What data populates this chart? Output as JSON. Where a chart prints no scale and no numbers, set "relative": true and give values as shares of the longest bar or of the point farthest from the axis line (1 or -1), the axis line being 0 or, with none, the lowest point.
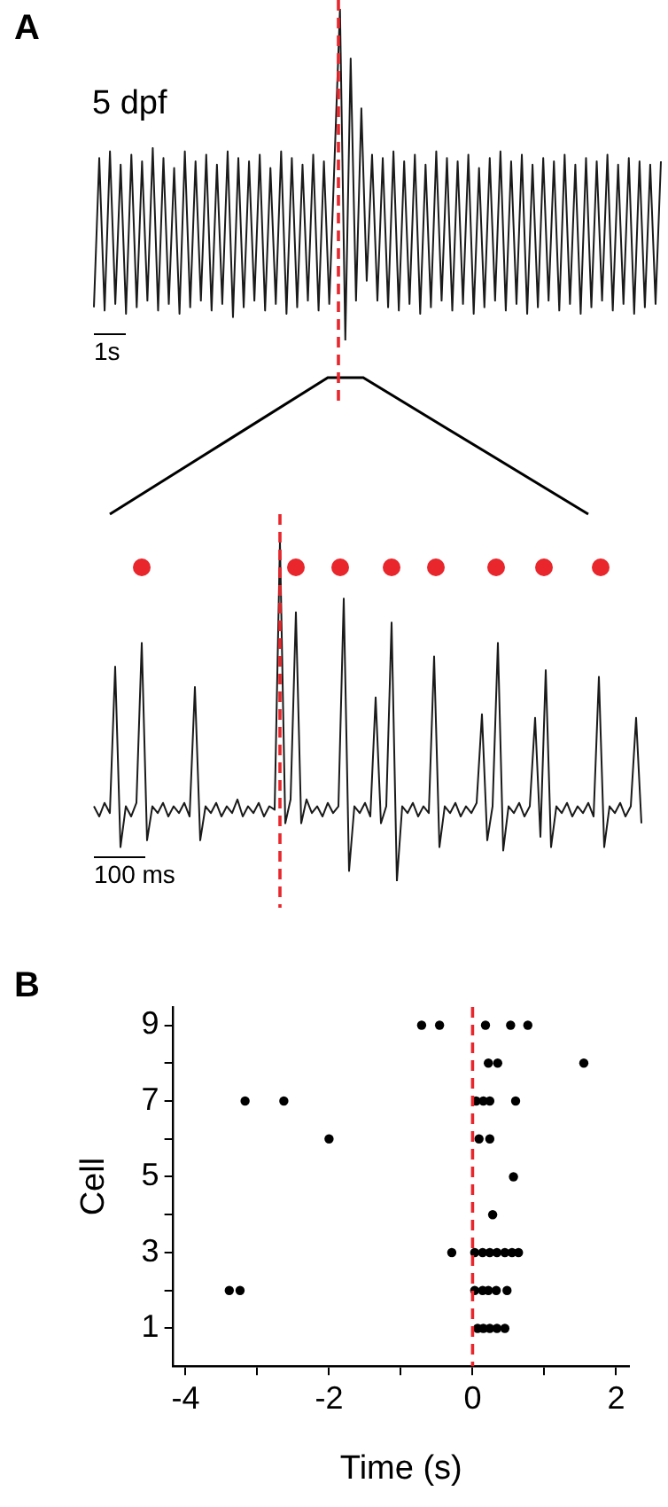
{
  "chart_data": [
    {
      "type": "line",
      "title": "A",
      "annotations": [
        "5 dpf",
        "1s"
      ],
      "relative": true,
      "tick_labels": false,
      "grid": false,
      "categories": [
        null,
        null,
        null,
        null,
        null,
        null,
        null,
        null,
        null,
        null,
        null,
        null,
        null,
        null,
        null,
        null,
        null,
        null,
        null,
        null,
        null,
        null,
        null,
        null,
        null,
        null,
        null,
        null,
        null,
        null,
        null,
        null,
        null,
        null,
        null,
        null,
        null,
        null,
        null,
        null,
        null,
        null,
        null,
        null,
        null,
        null,
        null,
        null,
        null,
        null,
        null,
        null,
        null,
        null,
        null,
        null,
        null,
        null,
        null,
        null,
        null,
        null,
        null,
        null,
        null,
        null,
        null,
        null,
        null,
        null,
        null,
        null,
        null,
        null,
        null,
        null,
        null,
        null,
        null,
        null,
        null,
        null,
        null,
        null,
        null,
        null,
        null,
        null,
        null,
        null,
        null,
        null,
        null,
        null,
        null,
        null,
        null,
        null,
        null,
        null,
        null,
        null,
        null,
        null,
        null,
        null,
        null
      ],
      "series": [
        {
          "color": "#1a1a1a",
          "values": [
            0.1,
            0.55,
            0.09,
            0.57,
            0.11,
            0.53,
            0.08,
            0.56,
            0.1,
            0.54,
            0.12,
            0.58,
            0.09,
            0.55,
            0.11,
            0.52,
            0.08,
            0.57,
            0.1,
            0.54,
            0.12,
            0.56,
            0.09,
            0.53,
            0.11,
            0.57,
            0.07,
            0.55,
            0.1,
            0.54,
            0.12,
            0.56,
            0.09,
            0.52,
            0.11,
            0.57,
            0.08,
            0.55,
            0.1,
            0.53,
            0.12,
            0.56,
            0.09,
            0.54,
            0.11,
            0.55,
            1,
            0,
            0.85,
            0.12,
            0.7,
            0.18,
            0.56,
            0.12,
            0.55,
            0.1,
            0.57,
            0.09,
            0.54,
            0.11,
            0.56,
            0.08,
            0.53,
            0.1,
            0.57,
            0.12,
            0.55,
            0.09,
            0.54,
            0.11,
            0.56,
            0.08,
            0.52,
            0.1,
            0.55,
            0.12,
            0.57,
            0.09,
            0.54,
            0.11,
            0.56,
            0.08,
            0.53,
            0.1,
            0.55,
            0.12,
            0.54,
            0.09,
            0.56,
            0.11,
            0.53,
            0.08,
            0.55,
            0.1,
            0.54,
            0.12,
            0.56,
            0.09,
            0.53,
            0.11,
            0.55,
            0.08,
            0.54,
            0.1,
            0.53,
            0.11,
            0.54
          ]
        }
      ]
    },
    {
      "type": "line",
      "annotations": [
        "100 ms"
      ],
      "relative": true,
      "tick_labels": false,
      "grid": false,
      "categories": [
        null,
        null,
        null,
        null,
        null,
        null,
        null,
        null,
        null,
        null,
        null,
        null,
        null,
        null,
        null,
        null,
        null,
        null,
        null,
        null,
        null,
        null,
        null,
        null,
        null,
        null,
        null,
        null,
        null,
        null,
        null,
        null,
        null,
        null,
        null,
        null,
        null,
        null,
        null,
        null,
        null,
        null,
        null,
        null,
        null,
        null,
        null,
        null,
        null,
        null,
        null,
        null,
        null,
        null,
        null,
        null,
        null,
        null,
        null,
        null,
        null,
        null,
        null,
        null,
        null,
        null,
        null,
        null,
        null,
        null,
        null,
        null,
        null,
        null,
        null,
        null,
        null,
        null,
        null,
        null,
        null,
        null,
        null,
        null,
        null,
        null,
        null,
        null,
        null,
        null,
        null,
        null,
        null,
        null,
        null,
        null,
        null,
        null,
        null,
        null,
        null,
        null,
        null,
        null
      ],
      "series": [
        {
          "type": "line",
          "color": "#1a1a1a",
          "values": [
            0.22,
            0.19,
            0.23,
            0.2,
            0.63,
            0.1,
            0.22,
            0.19,
            0.23,
            0.7,
            0.12,
            0.22,
            0.2,
            0.23,
            0.19,
            0.22,
            0.2,
            0.23,
            0.19,
            0.57,
            0.12,
            0.22,
            0.2,
            0.23,
            0.19,
            0.22,
            0.2,
            0.24,
            0.19,
            0.22,
            0.2,
            0.23,
            0.19,
            0.22,
            0.21,
            1,
            0.17,
            0.24,
            0.79,
            0.17,
            0.24,
            0.2,
            0.22,
            0.19,
            0.23,
            0.2,
            0.22,
            0.83,
            0.03,
            0.22,
            0.2,
            0.23,
            0.19,
            0.54,
            0.17,
            0.22,
            0.76,
            0,
            0.22,
            0.2,
            0.23,
            0.19,
            0.22,
            0.2,
            0.66,
            0.1,
            0.22,
            0.2,
            0.23,
            0.19,
            0.22,
            0.2,
            0.23,
            0.49,
            0.12,
            0.22,
            0.7,
            0.09,
            0.22,
            0.2,
            0.23,
            0.19,
            0.22,
            0.48,
            0.13,
            0.62,
            0.1,
            0.22,
            0.2,
            0.23,
            0.19,
            0.22,
            0.2,
            0.23,
            0.19,
            0.6,
            0.1,
            0.22,
            0.2,
            0.23,
            0.19,
            0.22,
            0.48,
            0.17
          ]
        }
      ]
    },
    {
      "type": "scatter",
      "title": "B",
      "xlabel": "Time (s)",
      "ylabel": "Cell",
      "marker": "circle",
      "grid": false,
      "xlim": [
        -4.17,
        2.18
      ],
      "ylim": [
        0,
        9.48
      ],
      "xticks": [
        -4,
        {
          "value": -3,
          "label": null
        },
        -2,
        {
          "value": -1,
          "label": null
        },
        0,
        {
          "value": 1,
          "label": null
        },
        2
      ],
      "yticks": [
        1,
        {
          "value": 2,
          "label": null
        },
        3,
        {
          "value": 4,
          "label": null
        },
        5,
        {
          "value": 6,
          "label": null
        },
        7,
        {
          "value": 8,
          "label": null
        },
        9
      ],
      "series": [
        {
          "color": "#000000",
          "x": [
            -0.71,
            -0.46,
            0.18,
            0.53,
            0.77,
            0.22,
            0.35,
            1.55,
            -3.17,
            -2.63,
            0.05,
            0.15,
            0.24,
            0.6,
            -2.0,
            0.09,
            0.24,
            0.57,
            0.28,
            -0.29,
            0.03,
            0.14,
            0.24,
            0.34,
            0.45,
            0.55,
            0.64,
            -3.39,
            -3.24,
            0.03,
            0.14,
            0.22,
            0.33,
            0.48,
            0.07,
            0.15,
            0.24,
            0.34,
            0.45
          ],
          "values": [
            9,
            9,
            9,
            9,
            9,
            8,
            8,
            8,
            7,
            7,
            7,
            7,
            7,
            7,
            6,
            6,
            6,
            5,
            4,
            3,
            3,
            3,
            3,
            3,
            3,
            3,
            3,
            2,
            2,
            2,
            2,
            2,
            2,
            2,
            1,
            1,
            1,
            1,
            1
          ]
        }
      ],
      "ref_lines": [
        {
          "axis": "x",
          "value": 0,
          "color": "#e8262c",
          "line_style": "dashed"
        }
      ]
    }
  ]
}
